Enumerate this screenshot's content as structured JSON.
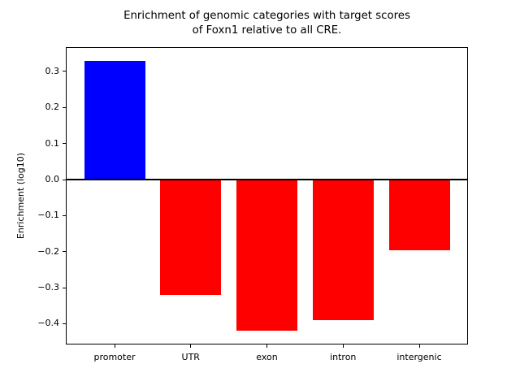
{
  "chart_data": {
    "type": "bar",
    "title": "Enrichment of genomic categories with target scores\nof Foxn1 relative to all CRE.",
    "xlabel": "",
    "ylabel": "Enrichment (log10)",
    "categories": [
      "promoter",
      "UTR",
      "exon",
      "intron",
      "intergenic"
    ],
    "values": [
      0.33,
      -0.32,
      -0.42,
      -0.39,
      -0.195
    ],
    "bar_colors": [
      "#0000ff",
      "#ff0000",
      "#ff0000",
      "#ff0000",
      "#ff0000"
    ],
    "positive_color": "#0000ff",
    "negative_color": "#ff0000",
    "yticks": [
      0.3,
      0.2,
      0.1,
      0.0,
      -0.1,
      -0.2,
      -0.3,
      -0.4
    ],
    "ytick_labels": [
      "0.3",
      "0.2",
      "0.1",
      "0.0",
      "−0.1",
      "−0.2",
      "−0.3",
      "−0.4"
    ],
    "ylim": [
      -0.4575,
      0.3675
    ],
    "xlim": [
      -0.64,
      4.64
    ],
    "bar_width_fraction": 0.8,
    "zero_line": true,
    "grid": false,
    "legend": null,
    "background_color": "#ffffff",
    "axis_color": "#000000"
  }
}
